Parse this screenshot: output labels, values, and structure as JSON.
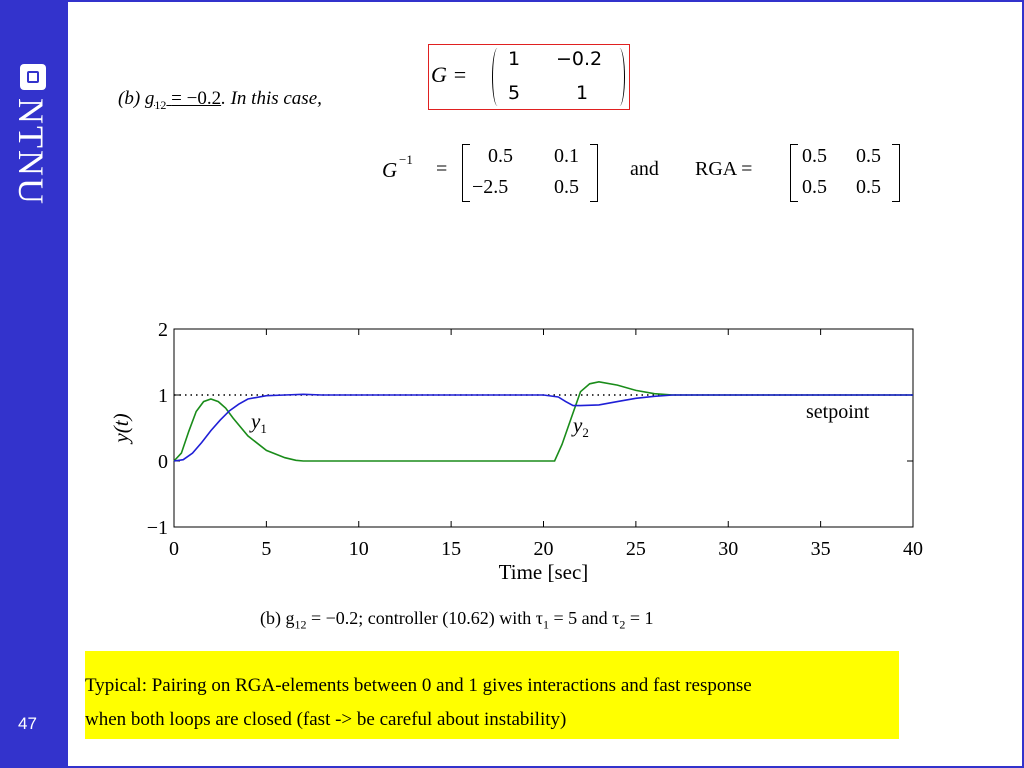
{
  "slide": {
    "page_number": "47",
    "logo_text": "NTNU",
    "case_label": {
      "prefix": "(b)",
      "g_symbol": "g",
      "g_subscript": "12",
      "equation": "= −0.2",
      "suffix": ". In this case,"
    },
    "G_matrix": {
      "label": "G =",
      "rows": [
        [
          "1",
          "−0.2"
        ],
        [
          "5",
          "1"
        ]
      ]
    },
    "G_inverse": {
      "label": "G",
      "superscript": "−1",
      "equals": "=",
      "rows": [
        [
          "0.5",
          "0.1"
        ],
        [
          "−2.5",
          "0.5"
        ]
      ]
    },
    "connector": "and",
    "RGA": {
      "label": "RGA =",
      "rows": [
        [
          "0.5",
          "0.5"
        ],
        [
          "0.5",
          "0.5"
        ]
      ]
    },
    "caption": {
      "text_a": "(b) g",
      "sub_a": "12",
      "text_b": " = −0.2; controller (10.62) with τ",
      "sub_b": "1",
      "text_c": " = 5 and τ",
      "sub_c": "2",
      "text_d": " = 1"
    },
    "note": {
      "line1": "Typical: Pairing on RGA-elements between 0 and 1 gives interactions and fast response",
      "line2": "when both loops are closed (fast -> be careful about instability)"
    },
    "colors": {
      "sidebar": "#3333cc",
      "note_background": "#ffff00",
      "matrix_box_border": "#e02020",
      "y1_line": "#1f1fd6",
      "y2_line": "#1a8c1a"
    }
  },
  "chart_data": {
    "type": "line",
    "xlabel": "Time [sec]",
    "ylabel": "y(t)",
    "xlim": [
      0,
      40
    ],
    "ylim": [
      -1,
      2
    ],
    "xticks": [
      "0",
      "5",
      "10",
      "15",
      "20",
      "25",
      "30",
      "35",
      "40"
    ],
    "yticks": [
      "−1",
      "0",
      "1",
      "2"
    ],
    "grid": false,
    "series": [
      {
        "name": "y1",
        "label": "y",
        "label_sub": "1",
        "x": [
          0,
          0.5,
          1,
          1.5,
          2,
          2.5,
          3,
          3.5,
          4,
          5,
          6,
          7,
          8,
          20,
          20.8,
          21.2,
          21.6,
          22,
          23,
          24,
          25,
          26,
          27,
          40
        ],
        "y": [
          0,
          0.02,
          0.12,
          0.28,
          0.46,
          0.62,
          0.76,
          0.86,
          0.94,
          0.99,
          1.0,
          1.01,
          1.0,
          1.0,
          0.97,
          0.9,
          0.84,
          0.84,
          0.85,
          0.9,
          0.95,
          0.98,
          1.0,
          1.0
        ]
      },
      {
        "name": "y2",
        "label": "y",
        "label_sub": "2",
        "x": [
          0,
          0.4,
          0.8,
          1.2,
          1.6,
          2,
          2.4,
          2.8,
          3.2,
          4,
          5,
          6,
          6.6,
          7,
          20.6,
          21,
          21.5,
          22,
          22.5,
          23,
          24,
          25,
          26,
          27,
          40
        ],
        "y": [
          0,
          0.12,
          0.45,
          0.75,
          0.9,
          0.94,
          0.9,
          0.8,
          0.65,
          0.38,
          0.16,
          0.05,
          0.01,
          0,
          0,
          0.25,
          0.65,
          1.05,
          1.17,
          1.2,
          1.15,
          1.07,
          1.02,
          1.0,
          1.0
        ]
      },
      {
        "name": "setpoint",
        "label": "setpoint",
        "style": "dotted",
        "x": [
          0,
          40
        ],
        "y": [
          1,
          1
        ]
      }
    ]
  }
}
